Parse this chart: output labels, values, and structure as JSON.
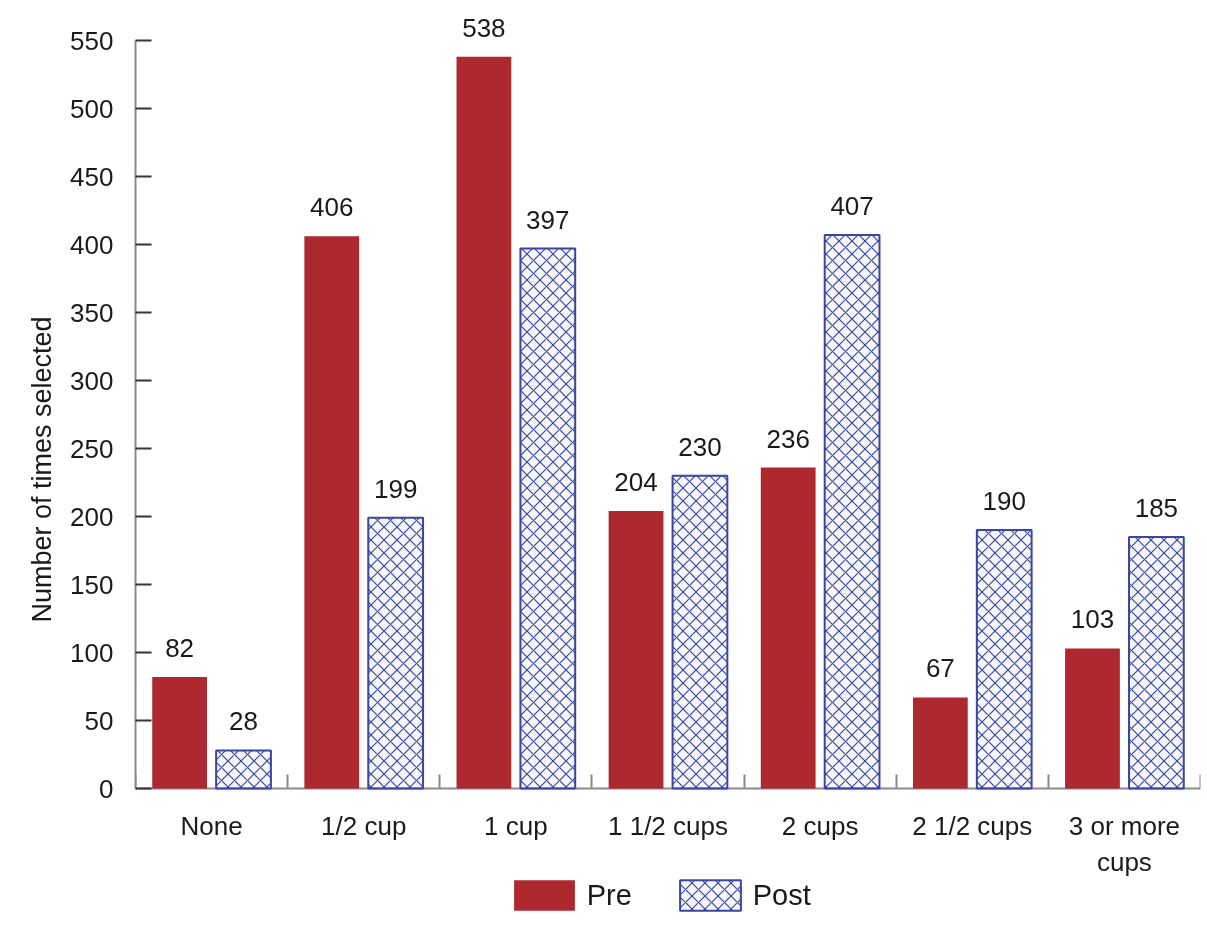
{
  "chart_data": {
    "type": "bar",
    "ylabel": "Number of times selected",
    "categories": [
      "None",
      "1/2 cup",
      "1 cup",
      "1 1/2 cups",
      "2 cups",
      "2 1/2 cups",
      "3 or more cups"
    ],
    "series": [
      {
        "name": "Pre",
        "color": "#ae2830",
        "values": [
          82,
          406,
          538,
          204,
          236,
          67,
          103
        ]
      },
      {
        "name": "Post",
        "color": "#3b46a0",
        "values": [
          28,
          199,
          397,
          230,
          407,
          190,
          185
        ]
      }
    ],
    "ylim": [
      0,
      550
    ],
    "yticks": [
      0,
      50,
      100,
      150,
      200,
      250,
      300,
      350,
      400,
      450,
      500,
      550
    ],
    "data_labels": true,
    "legend": "bottom",
    "grid": false
  }
}
